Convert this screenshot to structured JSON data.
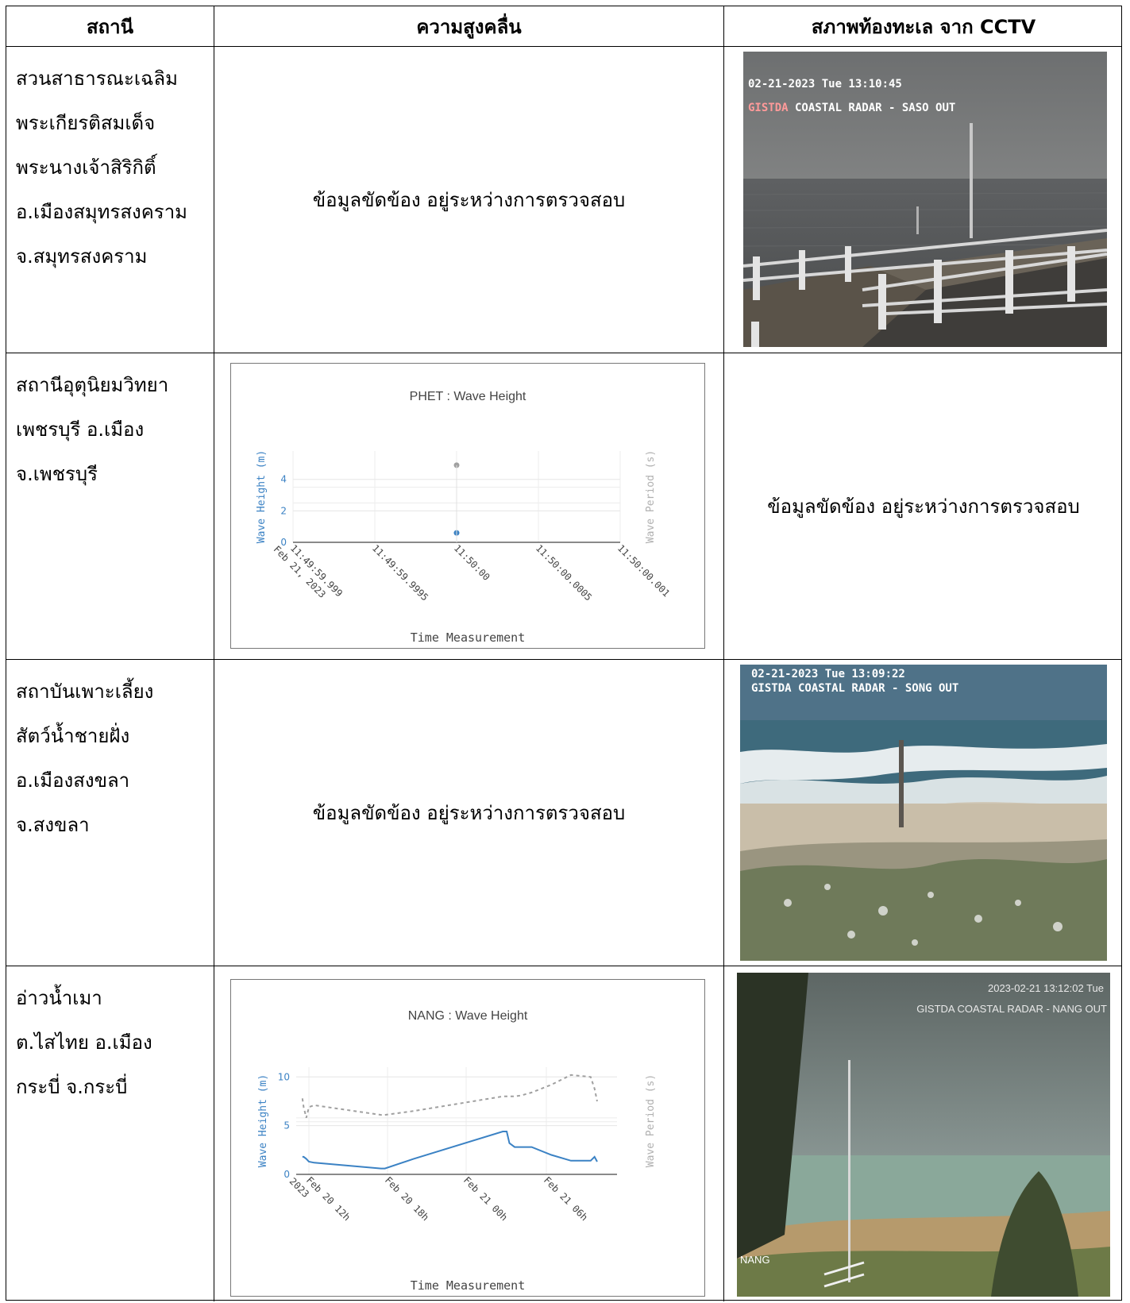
{
  "headers": {
    "station": "สถานี",
    "wave": "ความสูงคลื่น",
    "cctv": "สภาพท้องทะเล จาก CCTV"
  },
  "pending_text": "ข้อมูลขัดข้อง อยู่ระหว่างการตรวจสอบ",
  "rows": [
    {
      "station_lines": [
        "สวนสาธารณะเฉลิม",
        "พระเกียรติสมเด็จ",
        "พระนางเจ้าสิริกิติ์",
        "อ.เมืองสมุทรสงคราม",
        "จ.สมุทรสงคราม"
      ],
      "cctv": {
        "timestamp": "02-21-2023 Tue 13:10:45",
        "label_prefix": "GISTDA",
        "label_rest": " COASTAL RADAR - SASO OUT"
      }
    },
    {
      "station_lines": [
        "สถานีอุตุนิยมวิทยา",
        "เพชรบุรี อ.เมือง",
        "จ.เพชรบุรี"
      ]
    },
    {
      "station_lines": [
        "สถาบันเพาะเลี้ยง",
        "สัตว์น้ำชายฝั่ง",
        "อ.เมืองสงขลา",
        "จ.สงขลา"
      ],
      "cctv": {
        "timestamp": "02-21-2023 Tue 13:09:22",
        "label": "GISTDA COASTAL RADAR - SONG OUT"
      }
    },
    {
      "station_lines": [
        "อ่าวน้ำเมา",
        "ต.ไสไทย  อ.เมือง",
        "กระบี่ จ.กระบี่"
      ],
      "cctv": {
        "timestamp": "2023-02-21 13:12:02 Tue",
        "label": "GISTDA COASTAL RADAR - NANG OUT",
        "corner": "NANG"
      }
    }
  ],
  "chart_data": [
    {
      "type": "scatter",
      "title": "PHET : Wave Height",
      "xlabel": "Time Measurement",
      "ylabel": "Wave Height (m)",
      "y2label": "Wave Period (s)",
      "x_ticks": [
        "11:49:59.999",
        "11:49:59.9995",
        "11:50:00",
        "11:50:00.0005",
        "11:50:00.001"
      ],
      "x_tick_sub": [
        "Feb 21, 2023",
        "",
        "",
        "",
        ""
      ],
      "y_ticks": [
        0,
        2,
        4
      ],
      "ylim": [
        0,
        5.8
      ],
      "series": [
        {
          "name": "Wave Height (m)",
          "x": [
            "11:50:00"
          ],
          "values": [
            0.6
          ],
          "color": "#3b82c4"
        },
        {
          "name": "Wave Period (s)",
          "x": [
            "11:50:00"
          ],
          "values": [
            4.9
          ],
          "color": "#a0a0a0"
        }
      ],
      "grid": true
    },
    {
      "type": "line",
      "title": "NANG : Wave Height",
      "xlabel": "Time Measurement",
      "ylabel": "Wave Height (m)",
      "y2label": "Wave Period (s)",
      "x_ticks": [
        "Feb 20 12h",
        "Feb 20 18h",
        "Feb 21 00h",
        "Feb 21 06h"
      ],
      "x_tick_sub": [
        "2023",
        "",
        "",
        ""
      ],
      "y_ticks": [
        0,
        5,
        10
      ],
      "ylim": [
        0,
        11
      ],
      "x_hours": [
        -0.5,
        -0.4,
        -0.2,
        0,
        0.4,
        5.5,
        5.8,
        8,
        14.8,
        15.1,
        15.3,
        15.7,
        16.2,
        17,
        18.5,
        20,
        21.5,
        21.8,
        22
      ],
      "series": [
        {
          "name": "Wave Height (m)",
          "color": "#3b82c4",
          "dash": false,
          "values": [
            1.8,
            1.8,
            1.6,
            1.3,
            1.2,
            0.6,
            0.6,
            1.6,
            4.4,
            4.4,
            3.2,
            2.8,
            2.8,
            2.8,
            2.0,
            1.4,
            1.4,
            1.8,
            1.3
          ]
        },
        {
          "name": "Wave Period (s)",
          "color": "#a0a0a0",
          "dash": true,
          "values": [
            7.8,
            6.9,
            5.8,
            6.9,
            7.1,
            6.1,
            6.1,
            6.5,
            8.0,
            8.0,
            8.0,
            8.0,
            8.1,
            8.4,
            9.2,
            10.2,
            10.0,
            8.8,
            7.5
          ]
        }
      ],
      "grid": true
    }
  ]
}
